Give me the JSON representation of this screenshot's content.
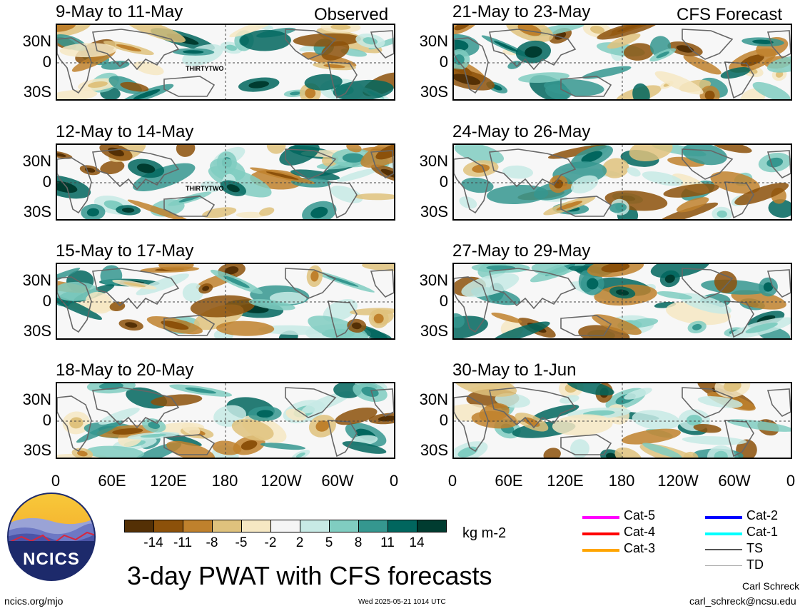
{
  "left_header": "Observed",
  "right_header": "CFS Forecast",
  "panels_left": [
    {
      "title": "9-May to 11-May",
      "storm_label": "THIRTYTWO"
    },
    {
      "title": "12-May to 14-May",
      "storm_label": "THIRTYTWO"
    },
    {
      "title": "15-May to 17-May",
      "storm_label": ""
    },
    {
      "title": "18-May to 20-May",
      "storm_label": ""
    }
  ],
  "panels_right": [
    {
      "title": "21-May to 23-May"
    },
    {
      "title": "24-May to 26-May"
    },
    {
      "title": "27-May to 29-May"
    },
    {
      "title": "30-May to 1-Jun"
    }
  ],
  "lat_labels": [
    "30N",
    "0",
    "30S"
  ],
  "lon_labels": [
    "0",
    "60E",
    "120E",
    "180",
    "120W",
    "60W",
    "0"
  ],
  "colorbar": {
    "unit": "kg m-2",
    "tick_labels": [
      "-14",
      "-11",
      "-8",
      "-5",
      "-2",
      "2",
      "5",
      "8",
      "11",
      "14"
    ],
    "colors": [
      "#543005",
      "#8c510a",
      "#bf812d",
      "#dfc27d",
      "#f6e8c3",
      "#f5f5f5",
      "#c7eae5",
      "#80cdc1",
      "#35978f",
      "#01665e",
      "#003c30"
    ]
  },
  "legend": [
    {
      "label": "Cat-5",
      "color": "#ff00ff"
    },
    {
      "label": "Cat-4",
      "color": "#ff0000"
    },
    {
      "label": "Cat-3",
      "color": "#ffa500"
    },
    {
      "label": "Cat-2",
      "color": "#0000ff"
    },
    {
      "label": "Cat-1",
      "color": "#00ffff"
    },
    {
      "label": "TS",
      "color": "#555555"
    },
    {
      "label": "TD",
      "color": "#aaaaaa"
    }
  ],
  "logo_text": "NCICS",
  "main_title": "3-day PWAT with CFS forecasts",
  "footer_left": "ncics.org/mjo",
  "footer_center": "Wed 2025-05-21 1014 UTC",
  "author_name": "Carl Schreck",
  "author_email": "carl_schreck@ncsu.edu"
}
